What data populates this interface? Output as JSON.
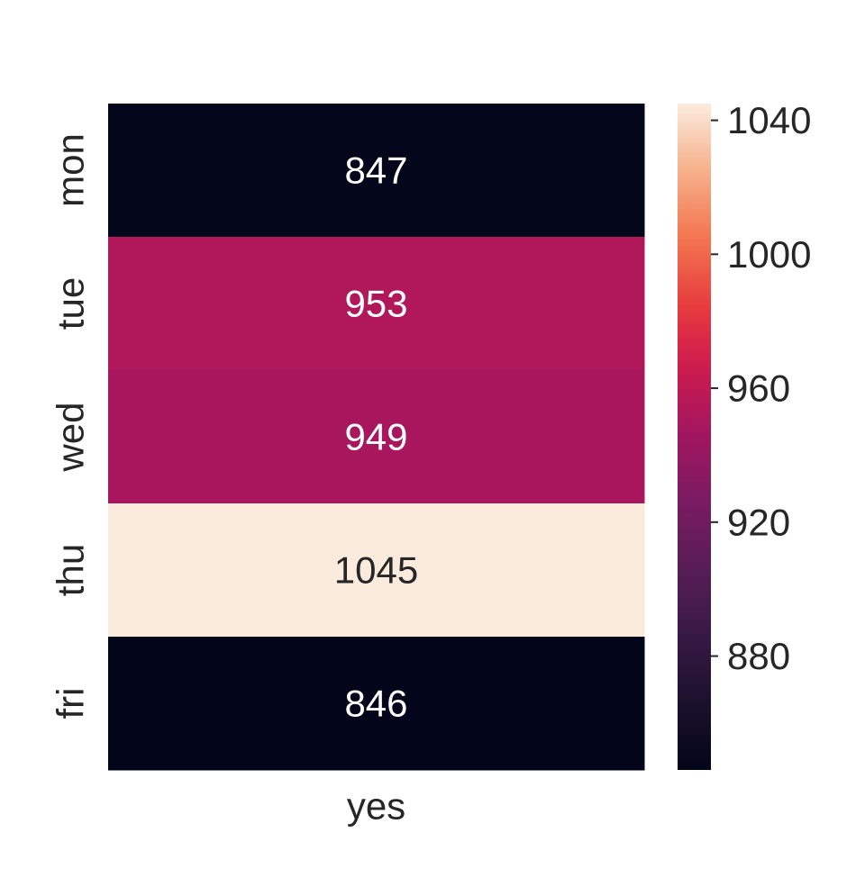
{
  "chart_data": {
    "type": "heatmap",
    "title": "",
    "xlabel": "",
    "ylabel": "",
    "columns": [
      "yes"
    ],
    "rows": [
      "mon",
      "tue",
      "wed",
      "thu",
      "fri"
    ],
    "values": [
      [
        847
      ],
      [
        953
      ],
      [
        949
      ],
      [
        1045
      ],
      [
        846
      ]
    ],
    "annotations": [
      "847",
      "953",
      "949",
      "1045",
      "846"
    ],
    "colormap": "rocket",
    "colorbar": {
      "range": [
        846,
        1045
      ],
      "ticks": [
        880,
        920,
        960,
        1000,
        1040
      ],
      "tick_labels": [
        "880",
        "920",
        "960",
        "1000",
        "1040"
      ]
    },
    "annotation_colors": {
      "dark_cell": "#ffffff",
      "light_cell": "#262626"
    },
    "text_color": "#262626"
  }
}
